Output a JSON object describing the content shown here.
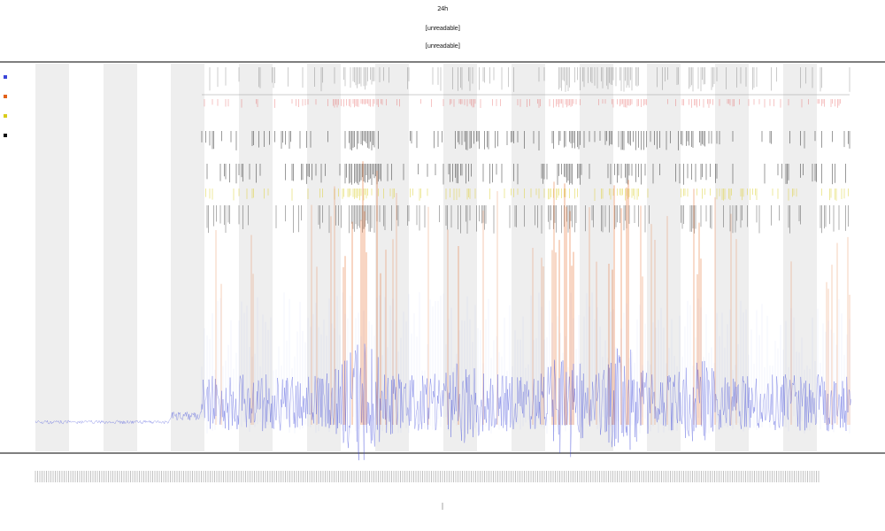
{
  "chart_data": {
    "type": "line",
    "title": "24h",
    "subtitle_lines": [
      "[unreadable]",
      "[unreadable]"
    ],
    "xlabel": "",
    "ylabel": "",
    "legend_placement": "top-left",
    "legend_note": "legend text illegible at this resolution",
    "x_tick_labels_note": "dense rotated timestamp labels, illegible",
    "grid": false,
    "night_bands": true,
    "series": [
      {
        "kind": "trace",
        "color": "#3a45d8"
      },
      {
        "kind": "event-spikes",
        "color": "#e2611a"
      },
      {
        "kind": "event-ticks-red",
        "color": "#e03a3a"
      },
      {
        "kind": "event-ticks-black",
        "color": "#111111"
      },
      {
        "kind": "event-ticks-yellow",
        "color": "#d9cc1a"
      }
    ]
  },
  "colors": {
    "axis": "#555555",
    "band": "#eeeeee",
    "trace": "#3a45d8",
    "spike": "#e2611a",
    "tick_black": "#111111",
    "tick_red": "#e03a3a",
    "tick_yellow": "#d9cc1a"
  }
}
